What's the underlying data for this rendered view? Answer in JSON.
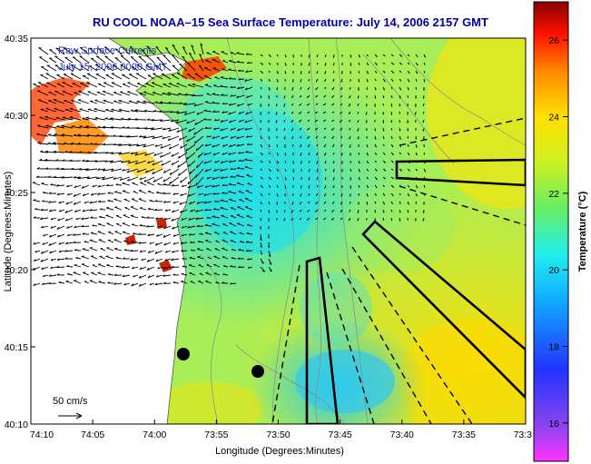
{
  "title": "RU COOL  NOAA–15  Sea Surface Temperature:  July 14, 2006 2157 GMT",
  "overlay": {
    "line1": "Raw Surface Currents",
    "line2": "July 15, 2006 0000 GMT"
  },
  "scale_arrow_label": "50 cm/s",
  "axes": {
    "xlabel": "Longitude (Degrees:Minutes)",
    "ylabel": "Latitude (Degrees:Minutes)",
    "xticks": [
      "74:10",
      "74:05",
      "74:00",
      "73:55",
      "73:50",
      "73:45",
      "73:40",
      "73:35",
      "73:3"
    ],
    "yticks": [
      "40:35",
      "40:30",
      "40:25",
      "40:20",
      "40:15",
      "40:10"
    ]
  },
  "colorbar": {
    "label": "Temperature (°C)",
    "ticks": [
      "26",
      "24",
      "22",
      "20",
      "18",
      "16"
    ],
    "range": [
      15,
      27
    ]
  },
  "colors": {
    "title": "#0000aa",
    "land": "#ffffff",
    "coast": "#555555",
    "sst_warm": "#ffe600",
    "sst_cool": "#29e3e6"
  }
}
